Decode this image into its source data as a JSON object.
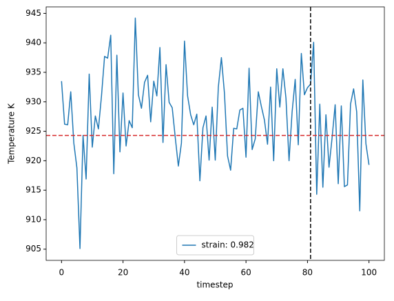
{
  "chart_data": {
    "type": "line",
    "xlabel": "timestep",
    "ylabel": "Temperature K",
    "x": [
      0,
      1,
      2,
      3,
      4,
      5,
      6,
      7,
      8,
      9,
      10,
      11,
      12,
      13,
      14,
      15,
      16,
      17,
      18,
      19,
      20,
      21,
      22,
      23,
      24,
      25,
      26,
      27,
      28,
      29,
      30,
      31,
      32,
      33,
      34,
      35,
      36,
      37,
      38,
      39,
      40,
      41,
      42,
      43,
      44,
      45,
      46,
      47,
      48,
      49,
      50,
      51,
      52,
      53,
      54,
      55,
      56,
      57,
      58,
      59,
      60,
      61,
      62,
      63,
      64,
      65,
      66,
      67,
      68,
      69,
      70,
      71,
      72,
      73,
      74,
      75,
      76,
      77,
      78,
      79,
      80,
      81,
      82,
      83,
      84,
      85,
      86,
      87,
      88,
      89,
      90,
      91,
      92,
      93,
      94,
      95,
      96,
      97,
      98,
      99,
      100
    ],
    "series": [
      {
        "name": "strain: 0.982",
        "color": "#1f77b4",
        "values": [
          933.5,
          926.2,
          926.1,
          931.7,
          923,
          918.8,
          905.1,
          924.3,
          916.9,
          934.7,
          922.3,
          927.6,
          925.4,
          931,
          937.7,
          937.4,
          941.3,
          917.8,
          937.9,
          921.5,
          931.5,
          922.5,
          926.8,
          925.6,
          944.2,
          931.2,
          928.9,
          933.3,
          934.5,
          926.6,
          933.5,
          931,
          939.2,
          923.1,
          936.3,
          929.9,
          929,
          923.9,
          919.1,
          923,
          940.3,
          931,
          927.8,
          926.1,
          927.9,
          916.6,
          925.6,
          927.6,
          920.1,
          929.1,
          920.1,
          932.5,
          937.5,
          931.4,
          920.8,
          918.4,
          925.5,
          925.4,
          928.6,
          928.9,
          920.6,
          935.7,
          921.9,
          923.7,
          931.7,
          929.2,
          926.9,
          922.8,
          932.5,
          920,
          935.6,
          929.1,
          935.6,
          930.6,
          920,
          928.3,
          933.8,
          922.7,
          938.2,
          931.2,
          932.4,
          933,
          940.1,
          914.3,
          929.6,
          915.5,
          927.8,
          918.9,
          923.9,
          929.5,
          916.1,
          929.3,
          915.6,
          915.9,
          929.6,
          932.2,
          928.3,
          911.5,
          933.7,
          922.9,
          919.3
        ]
      }
    ],
    "hlines": [
      {
        "value": 924.3,
        "color": "#d62728"
      }
    ],
    "vlines": [
      {
        "value": 81,
        "color": "#000000"
      }
    ],
    "xlim": [
      -5,
      105
    ],
    "xticks": [
      0,
      20,
      40,
      60,
      80,
      100
    ],
    "ylim": [
      903.1,
      946.1
    ],
    "yticks": [
      905,
      910,
      915,
      920,
      925,
      930,
      935,
      940,
      945
    ],
    "legend": "lower center"
  }
}
